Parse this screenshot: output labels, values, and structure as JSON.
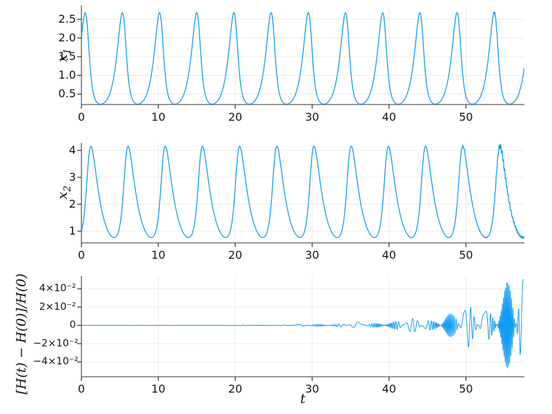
{
  "figure": {
    "background_color": "#ffffff",
    "series_color": "#0f9cf5",
    "grid_color": "#ebebeb",
    "spine_color": "#757575",
    "tick_color": "#3a3a3a",
    "tick_label_color": "#151515",
    "label_color": "#111111"
  },
  "chart_data": [
    {
      "type": "line",
      "title": "",
      "ylabel_base": "x",
      "ylabel_sub": "1",
      "xlabel": "",
      "xlim": [
        0,
        57.6
      ],
      "ylim": [
        0.222,
        2.87
      ],
      "xticks": [
        0,
        10,
        20,
        30,
        40,
        50
      ],
      "xtick_labels": [
        "0",
        "10",
        "20",
        "30",
        "40",
        "50"
      ],
      "yticks": [
        0.5,
        1.0,
        1.5,
        2.0,
        2.5
      ],
      "ytick_labels": [
        "0.5",
        "1.0",
        "1.5",
        "2.0",
        "2.5"
      ],
      "grid": true,
      "legend": "none",
      "series": [
        {
          "name": "x1",
          "color": "#0f9cf5",
          "line_width": 1.3,
          "generator": {
            "kind": "lotka_volterra",
            "component": 1,
            "alpha": 2,
            "beta": 1,
            "gamma": 1,
            "delta": 1,
            "x1_0": 2.0,
            "x2_0": 1.0,
            "t_end": 57.55,
            "period_approx": 4.87,
            "peak_value": 2.69,
            "trough_value": 0.23,
            "first_peak_t": 0.5,
            "late_noise": {
              "onset_t": 46,
              "amplitude_at_end": 0.03,
              "frequency": 40,
              "decay_rate": 0.22
            }
          }
        }
      ]
    },
    {
      "type": "line",
      "title": "",
      "ylabel_base": "x",
      "ylabel_sub": "2",
      "xlabel": "",
      "xlim": [
        0,
        57.6
      ],
      "ylim": [
        0.564,
        4.282
      ],
      "xticks": [
        0,
        10,
        20,
        30,
        40,
        50
      ],
      "xtick_labels": [
        "0",
        "10",
        "20",
        "30",
        "40",
        "50"
      ],
      "yticks": [
        1,
        2,
        3,
        4
      ],
      "ytick_labels": [
        "1",
        "2",
        "3",
        "4"
      ],
      "grid": true,
      "legend": "none",
      "series": [
        {
          "name": "x2",
          "color": "#0f9cf5",
          "line_width": 1.3,
          "generator": {
            "kind": "lotka_volterra",
            "component": 2,
            "alpha": 2,
            "beta": 1,
            "gamma": 1,
            "delta": 1,
            "x1_0": 2.0,
            "x2_0": 1.0,
            "t_end": 57.55,
            "period_approx": 4.87,
            "peak_value": 4.15,
            "trough_value": 0.76,
            "first_peak_t": 1.35,
            "late_noise": {
              "onset_t": 46,
              "amplitude_at_end": 0.05,
              "frequency": 36,
              "decay_rate": 0.22
            }
          }
        }
      ]
    },
    {
      "type": "line",
      "title": "",
      "ylabel": "[H(t) − H(0)]/H(0)",
      "xlabel": "t",
      "xlim": [
        0,
        57.6
      ],
      "ylim": [
        -0.0562,
        0.054
      ],
      "xticks": [
        0,
        10,
        20,
        30,
        40,
        50
      ],
      "xtick_labels": [
        "0",
        "10",
        "20",
        "30",
        "40",
        "50"
      ],
      "yticks": [
        0.04,
        0.02,
        0,
        -0.02,
        -0.04
      ],
      "ytick_labels": [
        "4×10⁻²",
        "2×10⁻²",
        "0",
        "−2×10⁻²",
        "−4×10⁻²"
      ],
      "grid": true,
      "legend": "none",
      "series": [
        {
          "name": "relative_energy_error",
          "color": "#0f9cf5",
          "line_width": 1.0,
          "generator": {
            "kind": "growing_oscillation",
            "base_amplitude": 2.2e-05,
            "growth_rate": 0.1355,
            "carrier_freq": 2.2,
            "packet_period": 2.44,
            "packet_sharpness": 1.25,
            "t_end": 57.55,
            "final_peak": 0.05,
            "final_trough": -0.055,
            "flat_until_t": 15
          }
        }
      ]
    }
  ]
}
